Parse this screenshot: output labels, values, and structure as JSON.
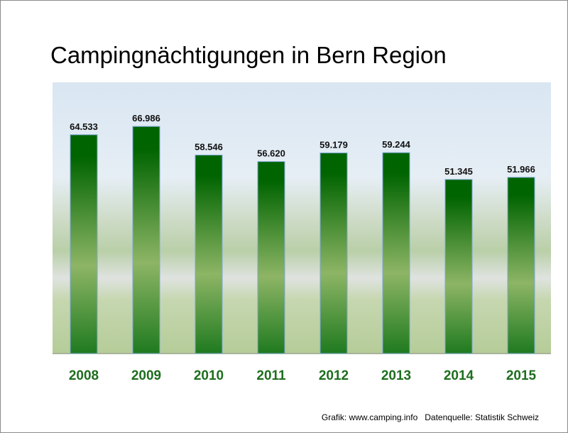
{
  "chart_data": {
    "type": "bar",
    "title": "Campingnächtigungen in Bern Region",
    "categories": [
      "2008",
      "2009",
      "2010",
      "2011",
      "2012",
      "2013",
      "2014",
      "2015"
    ],
    "values": [
      64533,
      66986,
      58546,
      56620,
      59179,
      59244,
      51345,
      51966
    ],
    "labels": [
      "64.533",
      "66.986",
      "58.546",
      "56.620",
      "59.179",
      "59.244",
      "51.345",
      "51.966"
    ],
    "xlabel": "",
    "ylabel": "",
    "ylim": [
      0,
      80000
    ],
    "grid": false,
    "legend": "none",
    "colors": {
      "bar_dark": "#006400",
      "bar_light": "#8db565",
      "bar_border": "#7da7d9",
      "tick": "#1e6e1e"
    }
  },
  "footer": "Grafik: www.camping.info   Datenquelle: Statistik Schweiz"
}
